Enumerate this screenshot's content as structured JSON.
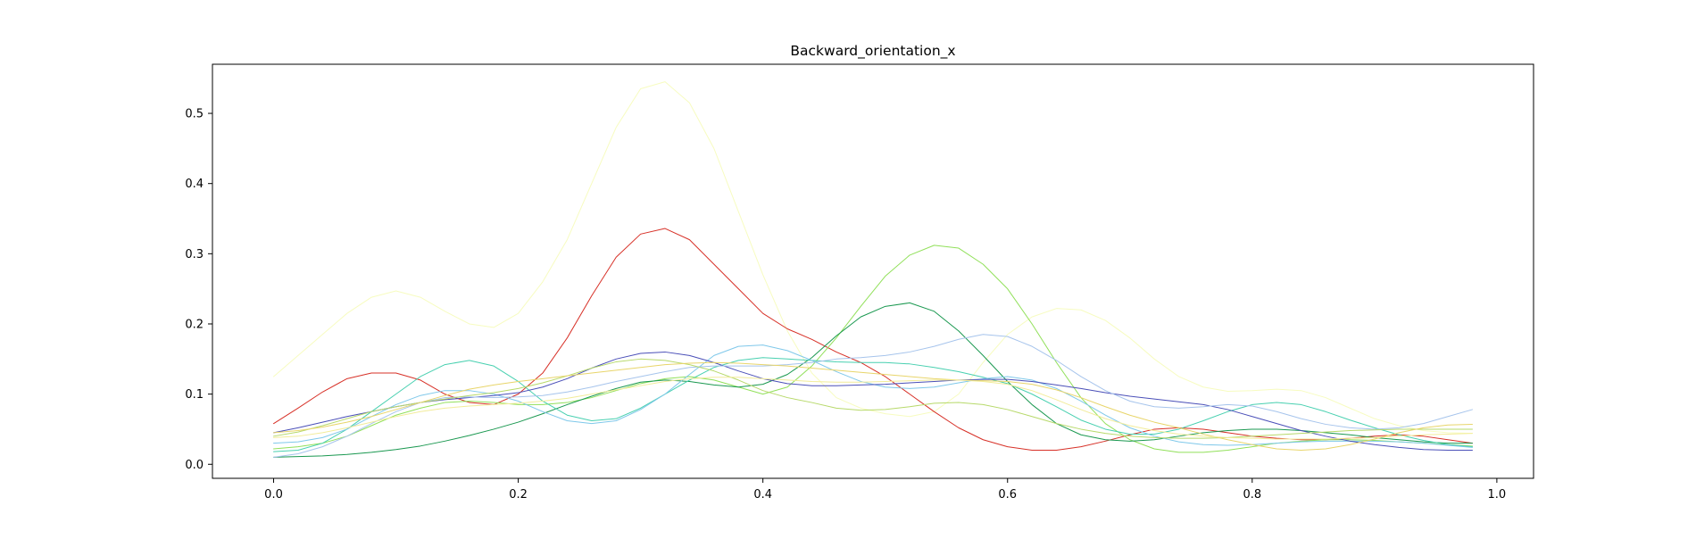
{
  "chart_data": {
    "type": "line",
    "title": "Backward_orientation_x",
    "xlabel": "",
    "ylabel": "",
    "xlim": [
      -0.05,
      1.03
    ],
    "ylim": [
      -0.02,
      0.57
    ],
    "xticks": [
      0.0,
      0.2,
      0.4,
      0.6,
      0.8,
      1.0
    ],
    "xtick_labels": [
      "0.0",
      "0.2",
      "0.4",
      "0.6",
      "0.8",
      "1.0"
    ],
    "yticks": [
      0.0,
      0.1,
      0.2,
      0.3,
      0.4,
      0.5
    ],
    "ytick_labels": [
      "0.0",
      "0.1",
      "0.2",
      "0.3",
      "0.4",
      "0.5"
    ],
    "grid": false,
    "legend": "none",
    "x": [
      0.0,
      0.02,
      0.04,
      0.06,
      0.08,
      0.1,
      0.12,
      0.14,
      0.16,
      0.18,
      0.2,
      0.22,
      0.24,
      0.26,
      0.28,
      0.3,
      0.32,
      0.34,
      0.36,
      0.38,
      0.4,
      0.42,
      0.44,
      0.46,
      0.48,
      0.5,
      0.52,
      0.54,
      0.56,
      0.58,
      0.6,
      0.62,
      0.64,
      0.66,
      0.68,
      0.7,
      0.72,
      0.74,
      0.76,
      0.78,
      0.8,
      0.82,
      0.84,
      0.86,
      0.88,
      0.9,
      0.92,
      0.94,
      0.96,
      0.98
    ],
    "series": [
      {
        "color": "#f7fcc0",
        "values": [
          0.125,
          0.155,
          0.185,
          0.215,
          0.238,
          0.247,
          0.238,
          0.218,
          0.2,
          0.195,
          0.215,
          0.26,
          0.32,
          0.4,
          0.48,
          0.535,
          0.545,
          0.515,
          0.45,
          0.36,
          0.27,
          0.19,
          0.13,
          0.095,
          0.08,
          0.072,
          0.068,
          0.075,
          0.1,
          0.145,
          0.185,
          0.21,
          0.222,
          0.22,
          0.205,
          0.18,
          0.15,
          0.125,
          0.11,
          0.104,
          0.105,
          0.107,
          0.105,
          0.095,
          0.08,
          0.065,
          0.055,
          0.048,
          0.045,
          0.044
        ]
      },
      {
        "color": "#d73027",
        "values": [
          0.058,
          0.08,
          0.103,
          0.122,
          0.13,
          0.13,
          0.12,
          0.1,
          0.088,
          0.085,
          0.1,
          0.13,
          0.18,
          0.24,
          0.295,
          0.328,
          0.336,
          0.32,
          0.285,
          0.25,
          0.215,
          0.193,
          0.178,
          0.16,
          0.145,
          0.125,
          0.1,
          0.075,
          0.052,
          0.035,
          0.025,
          0.02,
          0.02,
          0.025,
          0.033,
          0.042,
          0.05,
          0.052,
          0.05,
          0.045,
          0.04,
          0.037,
          0.035,
          0.035,
          0.037,
          0.04,
          0.042,
          0.04,
          0.035,
          0.03
        ]
      },
      {
        "color": "#91e05a",
        "values": [
          0.022,
          0.025,
          0.03,
          0.04,
          0.055,
          0.07,
          0.08,
          0.088,
          0.09,
          0.088,
          0.085,
          0.085,
          0.088,
          0.095,
          0.105,
          0.115,
          0.122,
          0.125,
          0.12,
          0.11,
          0.1,
          0.11,
          0.14,
          0.18,
          0.225,
          0.268,
          0.298,
          0.312,
          0.308,
          0.285,
          0.25,
          0.2,
          0.145,
          0.095,
          0.058,
          0.035,
          0.022,
          0.017,
          0.017,
          0.02,
          0.025,
          0.03,
          0.033,
          0.035,
          0.035,
          0.034,
          0.032,
          0.03,
          0.028,
          0.026
        ]
      },
      {
        "color": "#1a9850",
        "values": [
          0.01,
          0.011,
          0.012,
          0.014,
          0.017,
          0.021,
          0.026,
          0.033,
          0.041,
          0.05,
          0.06,
          0.072,
          0.085,
          0.097,
          0.108,
          0.117,
          0.12,
          0.118,
          0.113,
          0.11,
          0.114,
          0.128,
          0.152,
          0.183,
          0.21,
          0.225,
          0.23,
          0.218,
          0.19,
          0.155,
          0.118,
          0.085,
          0.058,
          0.042,
          0.035,
          0.033,
          0.035,
          0.04,
          0.045,
          0.048,
          0.05,
          0.05,
          0.048,
          0.045,
          0.042,
          0.038,
          0.035,
          0.032,
          0.03,
          0.03
        ]
      },
      {
        "color": "#48d0b0",
        "values": [
          0.018,
          0.02,
          0.03,
          0.05,
          0.075,
          0.1,
          0.125,
          0.142,
          0.148,
          0.14,
          0.118,
          0.09,
          0.07,
          0.062,
          0.065,
          0.08,
          0.1,
          0.12,
          0.138,
          0.148,
          0.152,
          0.15,
          0.148,
          0.146,
          0.145,
          0.145,
          0.143,
          0.138,
          0.132,
          0.124,
          0.115,
          0.1,
          0.082,
          0.063,
          0.05,
          0.043,
          0.043,
          0.05,
          0.062,
          0.075,
          0.085,
          0.088,
          0.085,
          0.075,
          0.063,
          0.052,
          0.042,
          0.034,
          0.028,
          0.025
        ]
      },
      {
        "color": "#7fc8ea",
        "values": [
          0.03,
          0.032,
          0.038,
          0.05,
          0.068,
          0.085,
          0.098,
          0.105,
          0.105,
          0.1,
          0.09,
          0.075,
          0.062,
          0.058,
          0.062,
          0.078,
          0.1,
          0.128,
          0.155,
          0.168,
          0.17,
          0.162,
          0.148,
          0.132,
          0.118,
          0.11,
          0.108,
          0.11,
          0.116,
          0.122,
          0.125,
          0.12,
          0.108,
          0.09,
          0.07,
          0.052,
          0.04,
          0.032,
          0.028,
          0.027,
          0.028,
          0.03,
          0.032,
          0.033,
          0.033,
          0.033,
          0.032,
          0.03,
          0.027,
          0.024
        ]
      },
      {
        "color": "#4a4fb8",
        "values": [
          0.045,
          0.052,
          0.06,
          0.068,
          0.075,
          0.082,
          0.088,
          0.092,
          0.095,
          0.098,
          0.102,
          0.11,
          0.122,
          0.137,
          0.15,
          0.158,
          0.16,
          0.155,
          0.145,
          0.133,
          0.122,
          0.115,
          0.112,
          0.112,
          0.113,
          0.114,
          0.116,
          0.118,
          0.12,
          0.121,
          0.121,
          0.118,
          0.113,
          0.108,
          0.102,
          0.097,
          0.093,
          0.089,
          0.085,
          0.078,
          0.068,
          0.058,
          0.048,
          0.04,
          0.033,
          0.028,
          0.024,
          0.021,
          0.02,
          0.02
        ]
      },
      {
        "color": "#a6c4ec",
        "values": [
          0.01,
          0.015,
          0.025,
          0.04,
          0.058,
          0.075,
          0.088,
          0.095,
          0.096,
          0.095,
          0.096,
          0.098,
          0.103,
          0.11,
          0.118,
          0.125,
          0.132,
          0.138,
          0.14,
          0.14,
          0.14,
          0.142,
          0.145,
          0.15,
          0.152,
          0.155,
          0.16,
          0.168,
          0.178,
          0.185,
          0.182,
          0.168,
          0.148,
          0.125,
          0.105,
          0.09,
          0.082,
          0.08,
          0.082,
          0.085,
          0.083,
          0.075,
          0.065,
          0.057,
          0.052,
          0.05,
          0.052,
          0.058,
          0.068,
          0.078
        ]
      },
      {
        "color": "#b7d96a",
        "values": [
          0.04,
          0.046,
          0.055,
          0.065,
          0.075,
          0.082,
          0.088,
          0.093,
          0.098,
          0.102,
          0.108,
          0.116,
          0.126,
          0.137,
          0.146,
          0.15,
          0.148,
          0.142,
          0.133,
          0.12,
          0.105,
          0.095,
          0.088,
          0.08,
          0.077,
          0.078,
          0.082,
          0.087,
          0.088,
          0.085,
          0.078,
          0.068,
          0.058,
          0.05,
          0.044,
          0.04,
          0.038,
          0.037,
          0.037,
          0.038,
          0.04,
          0.042,
          0.044,
          0.046,
          0.048,
          0.049,
          0.05,
          0.05,
          0.05,
          0.05
        ]
      },
      {
        "color": "#e8d56a",
        "values": [
          0.045,
          0.048,
          0.053,
          0.06,
          0.068,
          0.078,
          0.088,
          0.098,
          0.107,
          0.113,
          0.118,
          0.122,
          0.126,
          0.13,
          0.134,
          0.138,
          0.142,
          0.144,
          0.145,
          0.144,
          0.142,
          0.14,
          0.137,
          0.134,
          0.131,
          0.128,
          0.125,
          0.122,
          0.12,
          0.119,
          0.118,
          0.114,
          0.106,
          0.095,
          0.082,
          0.07,
          0.06,
          0.052,
          0.043,
          0.035,
          0.028,
          0.022,
          0.02,
          0.022,
          0.028,
          0.036,
          0.045,
          0.052,
          0.056,
          0.057
        ]
      },
      {
        "color": "#f2ec9a",
        "values": [
          0.038,
          0.04,
          0.045,
          0.052,
          0.06,
          0.068,
          0.075,
          0.08,
          0.083,
          0.085,
          0.087,
          0.09,
          0.094,
          0.1,
          0.106,
          0.112,
          0.118,
          0.122,
          0.124,
          0.124,
          0.122,
          0.12,
          0.118,
          0.117,
          0.117,
          0.118,
          0.119,
          0.12,
          0.12,
          0.118,
          0.114,
          0.105,
          0.092,
          0.078,
          0.065,
          0.055,
          0.048,
          0.043,
          0.04,
          0.038,
          0.037,
          0.036,
          0.036,
          0.036,
          0.037,
          0.038,
          0.04,
          0.042,
          0.043,
          0.044
        ]
      }
    ]
  }
}
